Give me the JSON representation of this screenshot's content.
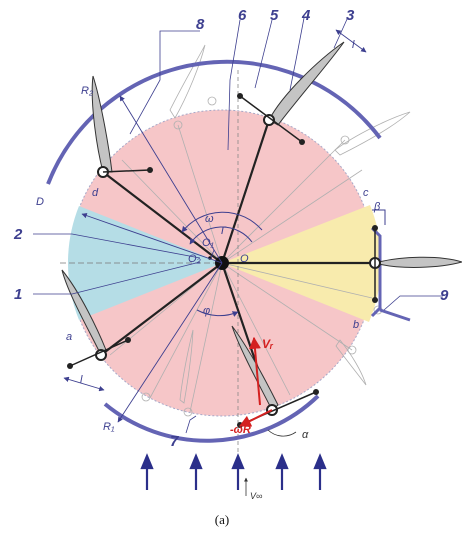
{
  "labels": {
    "n1": "1",
    "n2": "2",
    "n3": "3",
    "n4": "4",
    "n5": "5",
    "n6": "6",
    "n7": "7",
    "n8": "8",
    "n9": "9",
    "R2": "R₂",
    "R1": "R₁",
    "D": "D",
    "d": "d",
    "c": "c",
    "b": "b",
    "a": "a",
    "omega": "ω",
    "T": "T",
    "O1": "O₁",
    "O2": "O₂",
    "O": "O",
    "phi": "φ",
    "beta": "β",
    "l_top": "l",
    "l_bottom": "l",
    "Vr": "Vᵣ",
    "omegaR": "-ωR",
    "alpha": "α",
    "Vinf": "V∞"
  },
  "caption": "(a)",
  "colors": {
    "pink_sector": "#f6c6c8",
    "blue_sector": "#b5dde6",
    "yellow_sector": "#f8ebad",
    "guide_rail": "#6464b4",
    "label_text": "#3d3f8f",
    "flow_arrow": "#2b2f8a",
    "velocity_red": "#d42020"
  }
}
